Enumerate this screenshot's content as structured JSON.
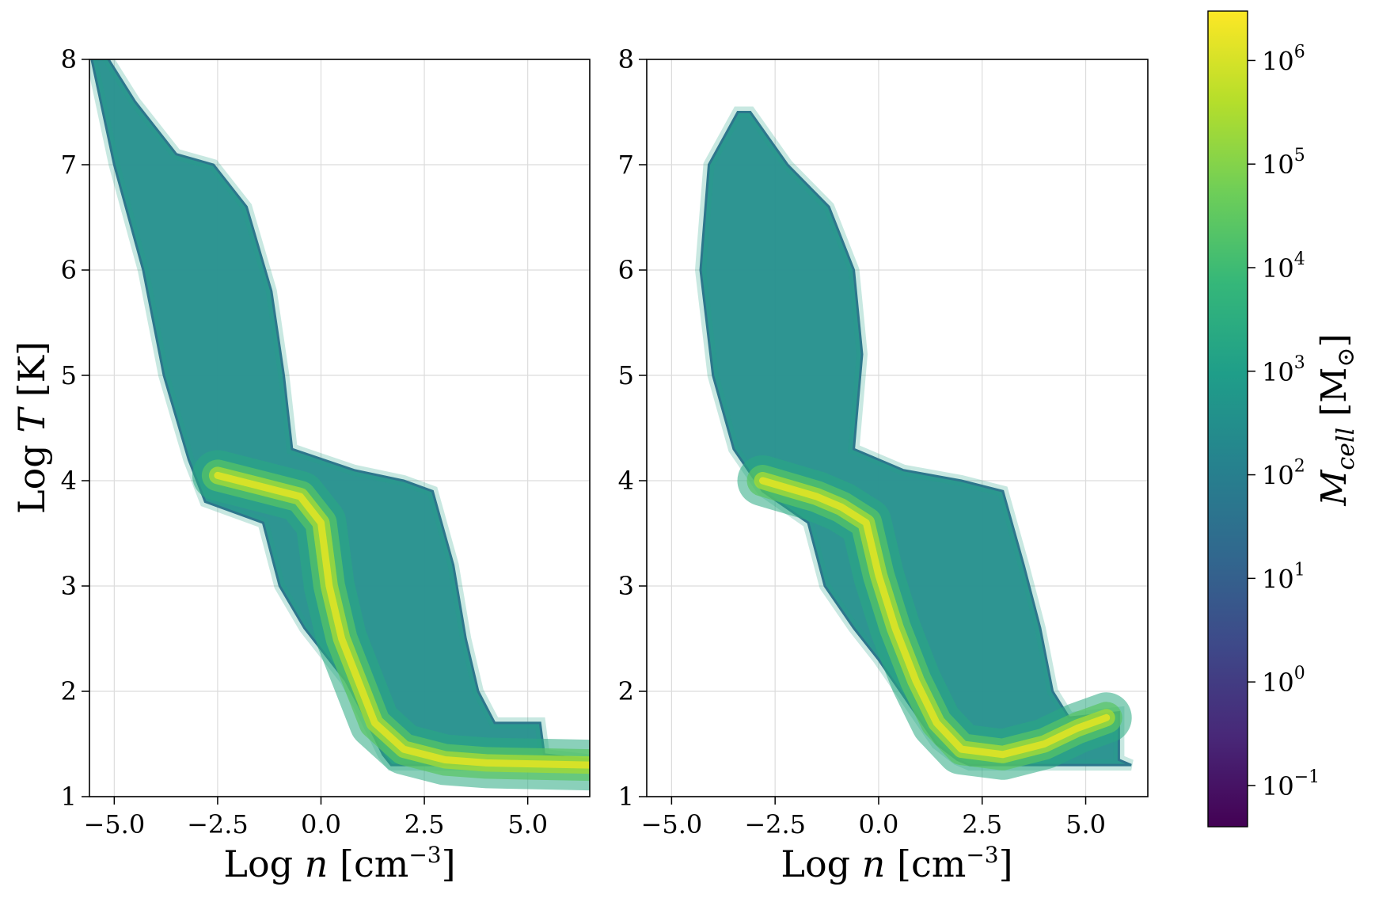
{
  "chart_data": [
    {
      "type": "heatmap",
      "panel": "left",
      "xlabel": "Log n [cm⁻³]",
      "ylabel": "Log T [K]",
      "xlim": [
        -5.6,
        6.5
      ],
      "ylim": [
        1,
        8
      ],
      "xticks": [
        -5.0,
        -2.5,
        0.0,
        2.5,
        5.0
      ],
      "xtick_labels": [
        "−5.0",
        "−2.5",
        "0.0",
        "2.5",
        "5.0"
      ],
      "yticks": [
        1,
        2,
        3,
        4,
        5,
        6,
        7,
        8
      ],
      "ytick_labels": [
        "1",
        "2",
        "3",
        "4",
        "5",
        "6",
        "7",
        "8"
      ],
      "grid": true,
      "regions": {
        "hot_diffuse_branch": {
          "left_edge": [
            [
              -5.6,
              8.1
            ],
            [
              -5.0,
              7.0
            ],
            [
              -4.3,
              6.0
            ],
            [
              -3.8,
              5.0
            ],
            [
              -3.2,
              4.2
            ],
            [
              -2.8,
              3.8
            ],
            [
              -1.4,
              3.6
            ],
            [
              -1.0,
              3.0
            ],
            [
              -0.4,
              2.6
            ],
            [
              0.2,
              2.3
            ],
            [
              0.6,
              2.1
            ],
            [
              1.0,
              1.8
            ],
            [
              1.5,
              1.4
            ],
            [
              1.7,
              1.3
            ]
          ],
          "right_edge": [
            [
              -5.3,
              8.1
            ],
            [
              -4.5,
              7.6
            ],
            [
              -3.5,
              7.1
            ],
            [
              -2.6,
              7.0
            ],
            [
              -1.8,
              6.6
            ],
            [
              -1.2,
              5.8
            ],
            [
              -0.9,
              5.0
            ],
            [
              -0.7,
              4.3
            ],
            [
              0.8,
              4.1
            ],
            [
              2.0,
              4.0
            ],
            [
              2.7,
              3.9
            ],
            [
              3.2,
              3.2
            ],
            [
              3.5,
              2.5
            ],
            [
              3.8,
              2.0
            ],
            [
              4.2,
              1.7
            ],
            [
              5.3,
              1.7
            ],
            [
              5.4,
              1.4
            ],
            [
              6.5,
              1.35
            ],
            [
              6.5,
              1.3
            ]
          ],
          "typical_log_mass": 2.5
        },
        "ridge": {
          "points": [
            [
              -2.5,
              4.05
            ],
            [
              -1.5,
              3.95
            ],
            [
              -0.5,
              3.85
            ],
            [
              0.0,
              3.6
            ],
            [
              0.2,
              3.0
            ],
            [
              0.5,
              2.5
            ],
            [
              0.9,
              2.1
            ],
            [
              1.3,
              1.7
            ],
            [
              2.0,
              1.45
            ],
            [
              3.0,
              1.35
            ],
            [
              4.0,
              1.32
            ],
            [
              6.5,
              1.3
            ]
          ],
          "peak_log_mass": 6.0
        }
      }
    },
    {
      "type": "heatmap",
      "panel": "right",
      "xlabel": "Log n [cm⁻³]",
      "ylabel": "",
      "xlim": [
        -5.6,
        6.5
      ],
      "ylim": [
        1,
        8
      ],
      "xticks": [
        -5.0,
        -2.5,
        0.0,
        2.5,
        5.0
      ],
      "xtick_labels": [
        "−5.0",
        "−2.5",
        "0.0",
        "2.5",
        "5.0"
      ],
      "yticks": [
        1,
        2,
        3,
        4,
        5,
        6,
        7,
        8
      ],
      "ytick_labels": [
        "1",
        "2",
        "3",
        "4",
        "5",
        "6",
        "7",
        "8"
      ],
      "grid": true,
      "regions": {
        "hot_diffuse_branch": {
          "left_edge": [
            [
              -3.4,
              7.5
            ],
            [
              -4.1,
              7.0
            ],
            [
              -4.3,
              6.0
            ],
            [
              -4.0,
              5.0
            ],
            [
              -3.5,
              4.3
            ],
            [
              -2.8,
              3.9
            ],
            [
              -1.7,
              3.6
            ],
            [
              -1.3,
              3.0
            ],
            [
              -0.6,
              2.6
            ],
            [
              0.0,
              2.3
            ],
            [
              0.7,
              1.9
            ],
            [
              1.4,
              1.5
            ],
            [
              1.9,
              1.35
            ],
            [
              2.2,
              1.3
            ]
          ],
          "right_edge": [
            [
              -3.1,
              7.5
            ],
            [
              -2.2,
              7.0
            ],
            [
              -1.2,
              6.6
            ],
            [
              -0.6,
              6.0
            ],
            [
              -0.4,
              5.2
            ],
            [
              -0.6,
              4.3
            ],
            [
              0.6,
              4.1
            ],
            [
              2.0,
              4.0
            ],
            [
              3.0,
              3.9
            ],
            [
              3.5,
              3.2
            ],
            [
              3.9,
              2.6
            ],
            [
              4.2,
              2.0
            ],
            [
              4.6,
              1.75
            ],
            [
              5.8,
              1.8
            ],
            [
              5.8,
              1.35
            ],
            [
              6.1,
              1.3
            ]
          ],
          "typical_log_mass": 2.5
        },
        "ridge": {
          "points": [
            [
              -2.8,
              4.0
            ],
            [
              -1.5,
              3.85
            ],
            [
              -0.9,
              3.75
            ],
            [
              -0.3,
              3.6
            ],
            [
              0.0,
              3.1
            ],
            [
              0.4,
              2.6
            ],
            [
              0.9,
              2.1
            ],
            [
              1.4,
              1.7
            ],
            [
              2.0,
              1.45
            ],
            [
              3.0,
              1.4
            ],
            [
              4.0,
              1.5
            ],
            [
              4.8,
              1.65
            ],
            [
              5.5,
              1.75
            ]
          ],
          "peak_log_mass": 6.0
        }
      }
    }
  ],
  "colorbar": {
    "label": "M_cell [M_⊙]",
    "scale": "log",
    "cmap": "viridis",
    "range": [
      0.04,
      3000000
    ],
    "ticks": [
      {
        "value": 0.1,
        "base": "10",
        "exp": "−1"
      },
      {
        "value": 1,
        "base": "10",
        "exp": "0"
      },
      {
        "value": 10,
        "base": "10",
        "exp": "1"
      },
      {
        "value": 100,
        "base": "10",
        "exp": "2"
      },
      {
        "value": 1000,
        "base": "10",
        "exp": "3"
      },
      {
        "value": 10000,
        "base": "10",
        "exp": "4"
      },
      {
        "value": 100000,
        "base": "10",
        "exp": "5"
      },
      {
        "value": 1000000,
        "base": "10",
        "exp": "6"
      }
    ],
    "stops": [
      "#440154",
      "#482878",
      "#3e4989",
      "#31688e",
      "#26828e",
      "#1f9e89",
      "#35b779",
      "#6ece58",
      "#b5de2b",
      "#fde725"
    ]
  },
  "labels": {
    "xlabel_left": {
      "prefix": "Log ",
      "var": "n",
      "unit": " [cm",
      "exp": "−3",
      "close": "]"
    },
    "xlabel_right": {
      "prefix": "Log ",
      "var": "n",
      "unit": " [cm",
      "exp": "−3",
      "close": "]"
    },
    "ylabel": {
      "prefix": "Log ",
      "var": "T",
      "unit": " [K]"
    },
    "cbar_label": {
      "var": "M",
      "sub": "cell",
      "open": " [M",
      "sub2": "⊙",
      "close": "]"
    }
  }
}
